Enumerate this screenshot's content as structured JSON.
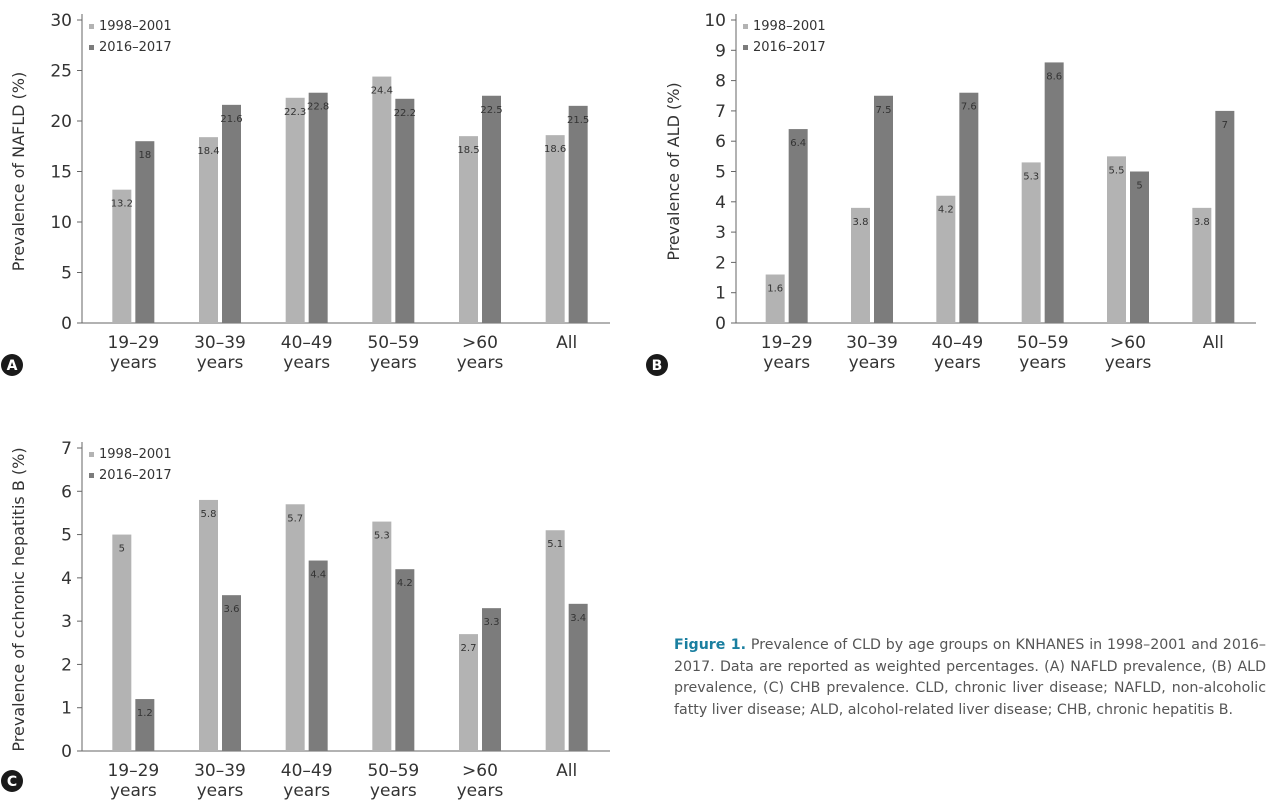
{
  "chart_data": [
    {
      "panel_label": "A",
      "type": "bar",
      "categories": [
        "19–29\nyears",
        "30–39\nyears",
        "40–49\nyears",
        "50–59\nyears",
        ">60\nyears",
        "All"
      ],
      "series": [
        {
          "name": "1998–2001",
          "values": [
            13.2,
            18.4,
            22.3,
            24.4,
            18.5,
            18.6
          ],
          "color": "#b3b3b3"
        },
        {
          "name": "2016–2017",
          "values": [
            18,
            21.6,
            22.8,
            22.2,
            22.5,
            21.5
          ],
          "color": "#7c7c7c"
        }
      ],
      "ylabel": "Prevalence of NAFLD (%)",
      "ylim": [
        0,
        30
      ],
      "yticks": [
        0,
        5,
        10,
        15,
        20,
        25,
        30
      ],
      "legend_position": "top-left",
      "grid": false
    },
    {
      "panel_label": "B",
      "type": "bar",
      "categories": [
        "19–29\nyears",
        "30–39\nyears",
        "40–49\nyears",
        "50–59\nyears",
        ">60\nyears",
        "All"
      ],
      "series": [
        {
          "name": "1998–2001",
          "values": [
            1.6,
            3.8,
            4.2,
            5.3,
            5.5,
            3.8
          ],
          "color": "#b3b3b3"
        },
        {
          "name": "2016–2017",
          "values": [
            6.4,
            7.5,
            7.6,
            8.6,
            5,
            7
          ],
          "color": "#7c7c7c"
        }
      ],
      "ylabel": "Prevalence of ALD (%)",
      "ylim": [
        0,
        10
      ],
      "yticks": [
        0,
        1,
        2,
        3,
        4,
        5,
        6,
        7,
        8,
        9,
        10
      ],
      "legend_position": "top-left",
      "grid": false
    },
    {
      "panel_label": "C",
      "type": "bar",
      "categories": [
        "19–29\nyears",
        "30–39\nyears",
        "40–49\nyears",
        "50–59\nyears",
        ">60\nyears",
        "All"
      ],
      "series": [
        {
          "name": "1998–2001",
          "values": [
            5,
            5.8,
            5.7,
            5.3,
            2.7,
            5.1
          ],
          "color": "#b3b3b3"
        },
        {
          "name": "2016–2017",
          "values": [
            1.2,
            3.6,
            4.4,
            4.2,
            3.3,
            3.4
          ],
          "color": "#7c7c7c"
        }
      ],
      "ylabel": "Prevalence of cchronic hepatitis B (%)",
      "ylim": [
        0,
        7
      ],
      "yticks": [
        0,
        1,
        2,
        3,
        4,
        5,
        6,
        7
      ],
      "legend_position": "top-left",
      "grid": false
    }
  ],
  "caption": {
    "label": "Figure 1.",
    "text": " Prevalence of CLD by age groups on KNHANES in 1998–2001 and 2016–2017. Data are reported as weighted percentages. (A) NAFLD prevalence, (B) ALD prevalence, (C) CHB prevalence. CLD, chronic liver disease; NAFLD, non-alcoholic fatty liver disease; ALD, alcohol-related liver disease; CHB, chronic hepatitis B."
  }
}
